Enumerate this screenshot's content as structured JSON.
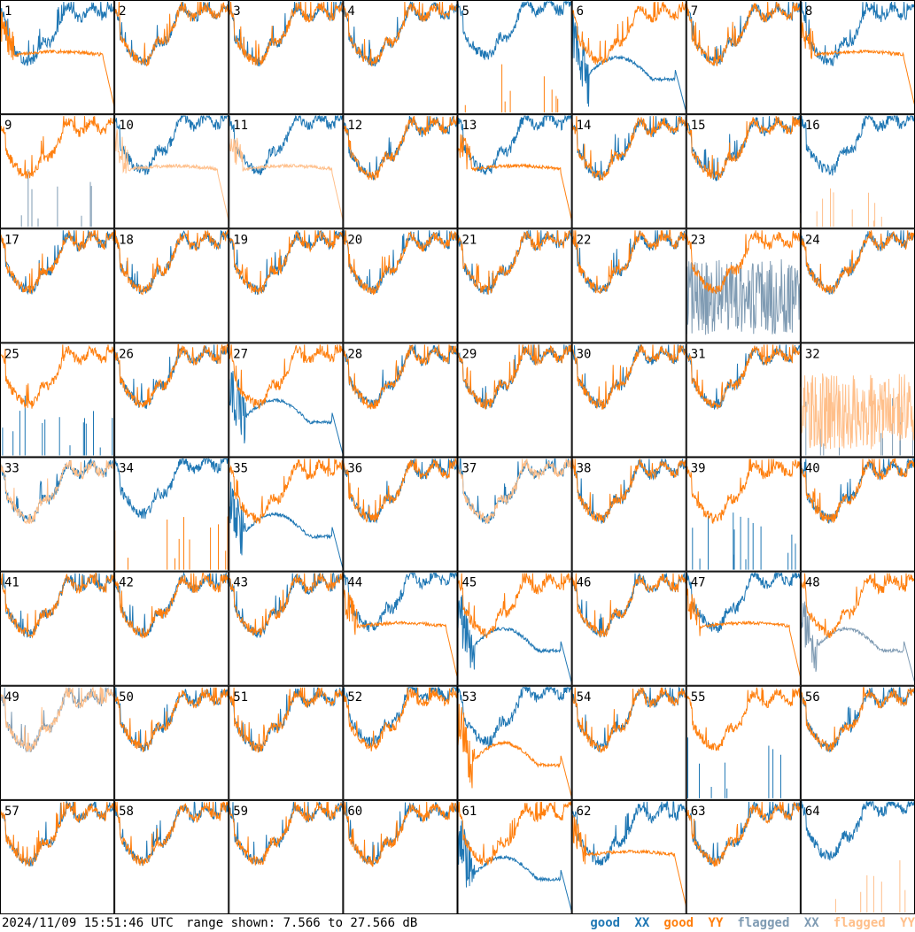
{
  "footer": {
    "timestamp": "2024/11/09 15:51:46 UTC",
    "range": "range shown: 7.566 to 27.566 dB"
  },
  "legend": [
    {
      "word": "good",
      "pol": "XX",
      "color": "#1f77b4"
    },
    {
      "word": "good",
      "pol": "YY",
      "color": "#ff7f0e"
    },
    {
      "word": "flagged",
      "pol": "XX",
      "color": "#7f9bb3"
    },
    {
      "word": "flagged",
      "pol": "YY",
      "color": "#ffbf8a"
    }
  ],
  "colors": {
    "good_xx": "#1f77b4",
    "good_yy": "#ff7f0e",
    "flagged_xx": "#7f9bb3",
    "flagged_yy": "#ffbf8a"
  },
  "chart_data": {
    "type": "line",
    "layout": "8x8 small multiples of antenna bandpass spectra",
    "y_unit": "dB",
    "ylim": [
      7.566,
      27.566
    ],
    "series_names": [
      "XX",
      "YY"
    ],
    "panels": [
      {
        "id": "1",
        "xx": "good",
        "yy": "good",
        "xx_shape": "normal",
        "yy_shape": "lowflat"
      },
      {
        "id": "2",
        "xx": "good",
        "yy": "good",
        "xx_shape": "normal",
        "yy_shape": "normal"
      },
      {
        "id": "3",
        "xx": "good",
        "yy": "good",
        "xx_shape": "normal",
        "yy_shape": "normal"
      },
      {
        "id": "4",
        "xx": "good",
        "yy": "good",
        "xx_shape": "normal",
        "yy_shape": "normal"
      },
      {
        "id": "5",
        "xx": "good",
        "yy": "good",
        "xx_shape": "high",
        "yy_shape": "spiky"
      },
      {
        "id": "6",
        "xx": "good",
        "yy": "good",
        "xx_shape": "dip",
        "yy_shape": "normal"
      },
      {
        "id": "7",
        "xx": "good",
        "yy": "good",
        "xx_shape": "normal",
        "yy_shape": "normal"
      },
      {
        "id": "8",
        "xx": "good",
        "yy": "good",
        "xx_shape": "normal",
        "yy_shape": "lowflat"
      },
      {
        "id": "9",
        "xx": "flagged",
        "yy": "good",
        "xx_shape": "spiky",
        "yy_shape": "normal"
      },
      {
        "id": "10",
        "xx": "good",
        "yy": "flagged",
        "xx_shape": "high",
        "yy_shape": "lowflat"
      },
      {
        "id": "11",
        "xx": "good",
        "yy": "flagged",
        "xx_shape": "high",
        "yy_shape": "lowflat"
      },
      {
        "id": "12",
        "xx": "good",
        "yy": "good",
        "xx_shape": "normal",
        "yy_shape": "normal"
      },
      {
        "id": "13",
        "xx": "good",
        "yy": "good",
        "xx_shape": "high",
        "yy_shape": "lowflat"
      },
      {
        "id": "14",
        "xx": "good",
        "yy": "good",
        "xx_shape": "normal",
        "yy_shape": "normal"
      },
      {
        "id": "15",
        "xx": "good",
        "yy": "good",
        "xx_shape": "normal",
        "yy_shape": "normal"
      },
      {
        "id": "16",
        "xx": "good",
        "yy": "flagged",
        "xx_shape": "high",
        "yy_shape": "spiky"
      },
      {
        "id": "17",
        "xx": "good",
        "yy": "good",
        "xx_shape": "normal",
        "yy_shape": "normal"
      },
      {
        "id": "18",
        "xx": "good",
        "yy": "good",
        "xx_shape": "normal",
        "yy_shape": "normal"
      },
      {
        "id": "19",
        "xx": "good",
        "yy": "good",
        "xx_shape": "normal",
        "yy_shape": "normal"
      },
      {
        "id": "20",
        "xx": "good",
        "yy": "good",
        "xx_shape": "normal",
        "yy_shape": "normal"
      },
      {
        "id": "21",
        "xx": "good",
        "yy": "good",
        "xx_shape": "normal",
        "yy_shape": "normal"
      },
      {
        "id": "22",
        "xx": "good",
        "yy": "good",
        "xx_shape": "normal",
        "yy_shape": "normal"
      },
      {
        "id": "23",
        "xx": "flagged",
        "yy": "good",
        "xx_shape": "noisy",
        "yy_shape": "normal"
      },
      {
        "id": "24",
        "xx": "good",
        "yy": "good",
        "xx_shape": "normal",
        "yy_shape": "normal"
      },
      {
        "id": "25",
        "xx": "good",
        "yy": "good",
        "xx_shape": "spiky",
        "yy_shape": "normal"
      },
      {
        "id": "26",
        "xx": "good",
        "yy": "good",
        "xx_shape": "normal",
        "yy_shape": "normal"
      },
      {
        "id": "27",
        "xx": "good",
        "yy": "good",
        "xx_shape": "dip",
        "yy_shape": "normal"
      },
      {
        "id": "28",
        "xx": "good",
        "yy": "good",
        "xx_shape": "normal",
        "yy_shape": "normal"
      },
      {
        "id": "29",
        "xx": "good",
        "yy": "good",
        "xx_shape": "normal",
        "yy_shape": "normal"
      },
      {
        "id": "30",
        "xx": "good",
        "yy": "good",
        "xx_shape": "normal",
        "yy_shape": "normal"
      },
      {
        "id": "31",
        "xx": "good",
        "yy": "good",
        "xx_shape": "normal",
        "yy_shape": "normal"
      },
      {
        "id": "32",
        "xx": "flagged",
        "yy": "flagged",
        "xx_shape": "spiky",
        "yy_shape": "noisy"
      },
      {
        "id": "33",
        "xx": "good",
        "yy": "flagged",
        "xx_shape": "normal",
        "yy_shape": "normal"
      },
      {
        "id": "34",
        "xx": "good",
        "yy": "good",
        "xx_shape": "high",
        "yy_shape": "spiky"
      },
      {
        "id": "35",
        "xx": "good",
        "yy": "good",
        "xx_shape": "dip",
        "yy_shape": "normal"
      },
      {
        "id": "36",
        "xx": "good",
        "yy": "good",
        "xx_shape": "normal",
        "yy_shape": "normal"
      },
      {
        "id": "37",
        "xx": "good",
        "yy": "flagged",
        "xx_shape": "normal",
        "yy_shape": "normal"
      },
      {
        "id": "38",
        "xx": "good",
        "yy": "good",
        "xx_shape": "normal",
        "yy_shape": "normal"
      },
      {
        "id": "39",
        "xx": "good",
        "yy": "good",
        "xx_shape": "spiky",
        "yy_shape": "normal"
      },
      {
        "id": "40",
        "xx": "good",
        "yy": "good",
        "xx_shape": "normal",
        "yy_shape": "normal"
      },
      {
        "id": "41",
        "xx": "good",
        "yy": "good",
        "xx_shape": "normal",
        "yy_shape": "normal"
      },
      {
        "id": "42",
        "xx": "good",
        "yy": "good",
        "xx_shape": "normal",
        "yy_shape": "normal"
      },
      {
        "id": "43",
        "xx": "good",
        "yy": "good",
        "xx_shape": "normal",
        "yy_shape": "normal"
      },
      {
        "id": "44",
        "xx": "good",
        "yy": "good",
        "xx_shape": "high",
        "yy_shape": "lowflat"
      },
      {
        "id": "45",
        "xx": "good",
        "yy": "good",
        "xx_shape": "dip",
        "yy_shape": "normal"
      },
      {
        "id": "46",
        "xx": "good",
        "yy": "good",
        "xx_shape": "normal",
        "yy_shape": "normal"
      },
      {
        "id": "47",
        "xx": "good",
        "yy": "good",
        "xx_shape": "high",
        "yy_shape": "lowflat"
      },
      {
        "id": "48",
        "xx": "flagged",
        "yy": "good",
        "xx_shape": "dip",
        "yy_shape": "normal"
      },
      {
        "id": "49",
        "xx": "flagged",
        "yy": "flagged",
        "xx_shape": "normal",
        "yy_shape": "normal"
      },
      {
        "id": "50",
        "xx": "good",
        "yy": "good",
        "xx_shape": "normal",
        "yy_shape": "normal"
      },
      {
        "id": "51",
        "xx": "good",
        "yy": "good",
        "xx_shape": "normal",
        "yy_shape": "normal"
      },
      {
        "id": "52",
        "xx": "good",
        "yy": "good",
        "xx_shape": "high",
        "yy_shape": "normal"
      },
      {
        "id": "53",
        "xx": "good",
        "yy": "good",
        "xx_shape": "high",
        "yy_shape": "dip"
      },
      {
        "id": "54",
        "xx": "good",
        "yy": "good",
        "xx_shape": "normal",
        "yy_shape": "normal"
      },
      {
        "id": "55",
        "xx": "good",
        "yy": "good",
        "xx_shape": "spiky",
        "yy_shape": "normal"
      },
      {
        "id": "56",
        "xx": "good",
        "yy": "good",
        "xx_shape": "normal",
        "yy_shape": "normal"
      },
      {
        "id": "57",
        "xx": "good",
        "yy": "good",
        "xx_shape": "normal",
        "yy_shape": "normal"
      },
      {
        "id": "58",
        "xx": "good",
        "yy": "good",
        "xx_shape": "normal",
        "yy_shape": "normal"
      },
      {
        "id": "59",
        "xx": "good",
        "yy": "good",
        "xx_shape": "normal",
        "yy_shape": "normal"
      },
      {
        "id": "60",
        "xx": "good",
        "yy": "good",
        "xx_shape": "normal",
        "yy_shape": "normal"
      },
      {
        "id": "61",
        "xx": "good",
        "yy": "good",
        "xx_shape": "dip",
        "yy_shape": "normal"
      },
      {
        "id": "62",
        "xx": "good",
        "yy": "good",
        "xx_shape": "normal",
        "yy_shape": "lowflat"
      },
      {
        "id": "63",
        "xx": "good",
        "yy": "good",
        "xx_shape": "normal",
        "yy_shape": "normal"
      },
      {
        "id": "64",
        "xx": "good",
        "yy": "flagged",
        "xx_shape": "high",
        "yy_shape": "spiky"
      }
    ]
  }
}
